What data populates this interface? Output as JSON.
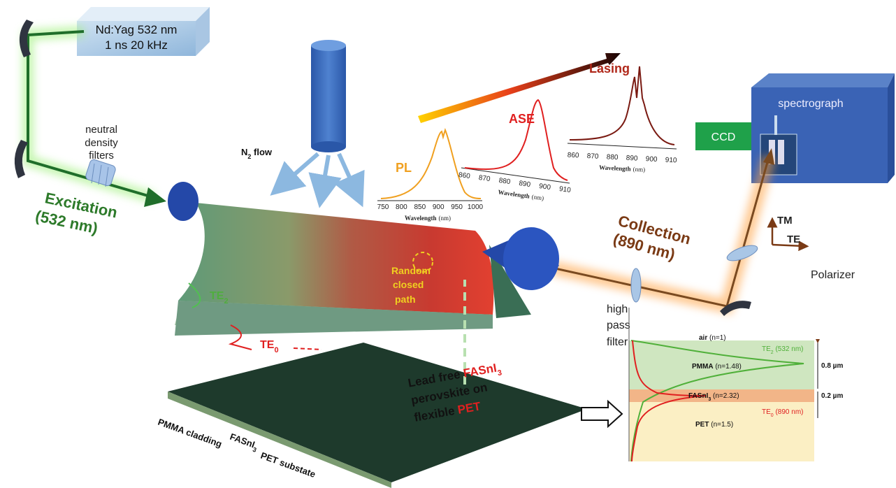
{
  "laser": {
    "line1": "Nd:Yag 532 nm",
    "line2": "1 ns 20 kHz"
  },
  "nd_filter": [
    "neutral",
    "density",
    "filters"
  ],
  "excitation": [
    "Excitation",
    "(532 nm)"
  ],
  "n2_flow": {
    "base": "N",
    "sub": "2",
    "rest": " flow"
  },
  "emission": {
    "pl": "PL",
    "ase": "ASE",
    "lasing": "Lasing"
  },
  "spectra": [
    {
      "ticks": [
        750,
        800,
        850,
        900,
        950,
        1000
      ],
      "xlabel": "Wavelength",
      "unit": "(nm)"
    },
    {
      "ticks": [
        860,
        870,
        880,
        890,
        900,
        910
      ],
      "xlabel": "Wavelength",
      "unit": "(nm)"
    },
    {
      "ticks": [
        860,
        870,
        880,
        890,
        900,
        910
      ],
      "xlabel": "Wavelength",
      "unit": "(nm)"
    }
  ],
  "spectrograph": "spectrograph",
  "ccd": "CCD",
  "polarization": {
    "tm": "TM",
    "te": "TE"
  },
  "polarizer": "Polarizer",
  "collection": [
    "Collection",
    "(890 nm)"
  ],
  "hp_filter": [
    "high",
    "pass",
    "filter"
  ],
  "random_path": [
    "Random",
    "closed",
    "path"
  ],
  "modes": {
    "te2": {
      "base": "TE",
      "sub": "2"
    },
    "te0": {
      "base": "TE",
      "sub": "0"
    }
  },
  "sample": {
    "line1a": "Lead free ",
    "line1b": "FASnI",
    "line1c": "3",
    "line2": "perovskite on",
    "line3a": "flexible ",
    "line3b": "PET"
  },
  "layers_3d": {
    "pmma": "PMMA cladding",
    "fas": "FASnI",
    "fas_sub": "3",
    "pet": "PET substate"
  },
  "profile": {
    "air": {
      "name": "air",
      "n": "(n=1)"
    },
    "pmma": {
      "name": "PMMA",
      "n": "(n=1.48)"
    },
    "fas": {
      "name": "FASnI",
      "sub": "3",
      "n": "(n=2.32)"
    },
    "pet": {
      "name": "PET",
      "n": "(n=1.5)"
    },
    "te2": {
      "base": "TE",
      "sub": "2",
      "rest": " (532 nm)"
    },
    "te0": {
      "base": "TE",
      "sub": "0",
      "rest": " (890 nm)"
    },
    "thick_pmma": "0.8 µm",
    "thick_fas": "0.2 µm"
  }
}
